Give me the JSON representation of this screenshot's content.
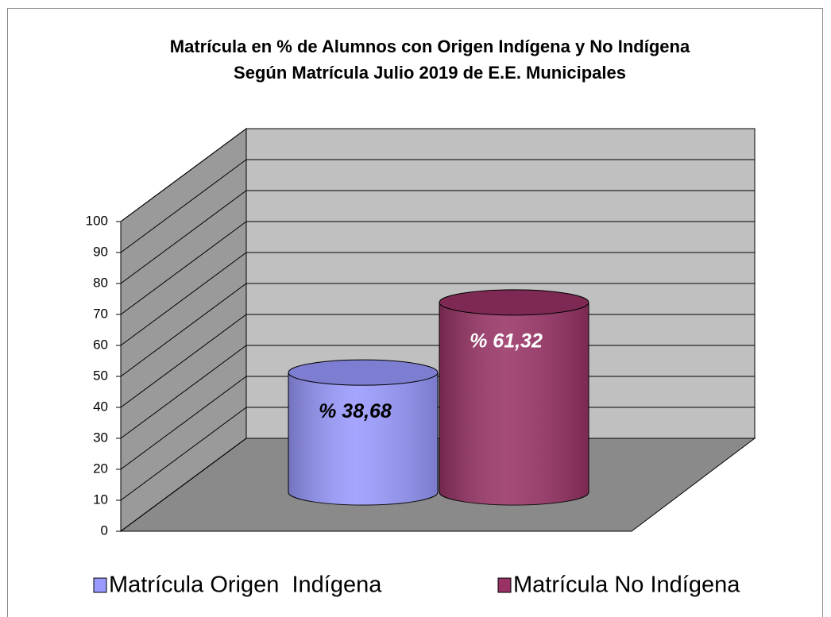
{
  "chart_data": {
    "type": "bar",
    "title": [
      "Matrícula en % de Alumnos con Origen Indígena y No Indígena",
      "Según Matrícula Julio 2019 de E.E. Municipales"
    ],
    "categories": [
      null
    ],
    "series": [
      {
        "name": "Matrícula Origen  Indígena",
        "color": "#9999ff",
        "values": [
          38.68
        ],
        "value_labels": [
          "% 38,68"
        ]
      },
      {
        "name": "Matrícula No Indígena",
        "color": "#993366",
        "values": [
          61.32
        ],
        "value_labels": [
          "% 61,32"
        ]
      }
    ],
    "ylim": [
      0,
      100
    ],
    "yticks": [
      0,
      10,
      20,
      30,
      40,
      50,
      60,
      70,
      80,
      90,
      100
    ],
    "grid": true,
    "legend": "bottom"
  }
}
